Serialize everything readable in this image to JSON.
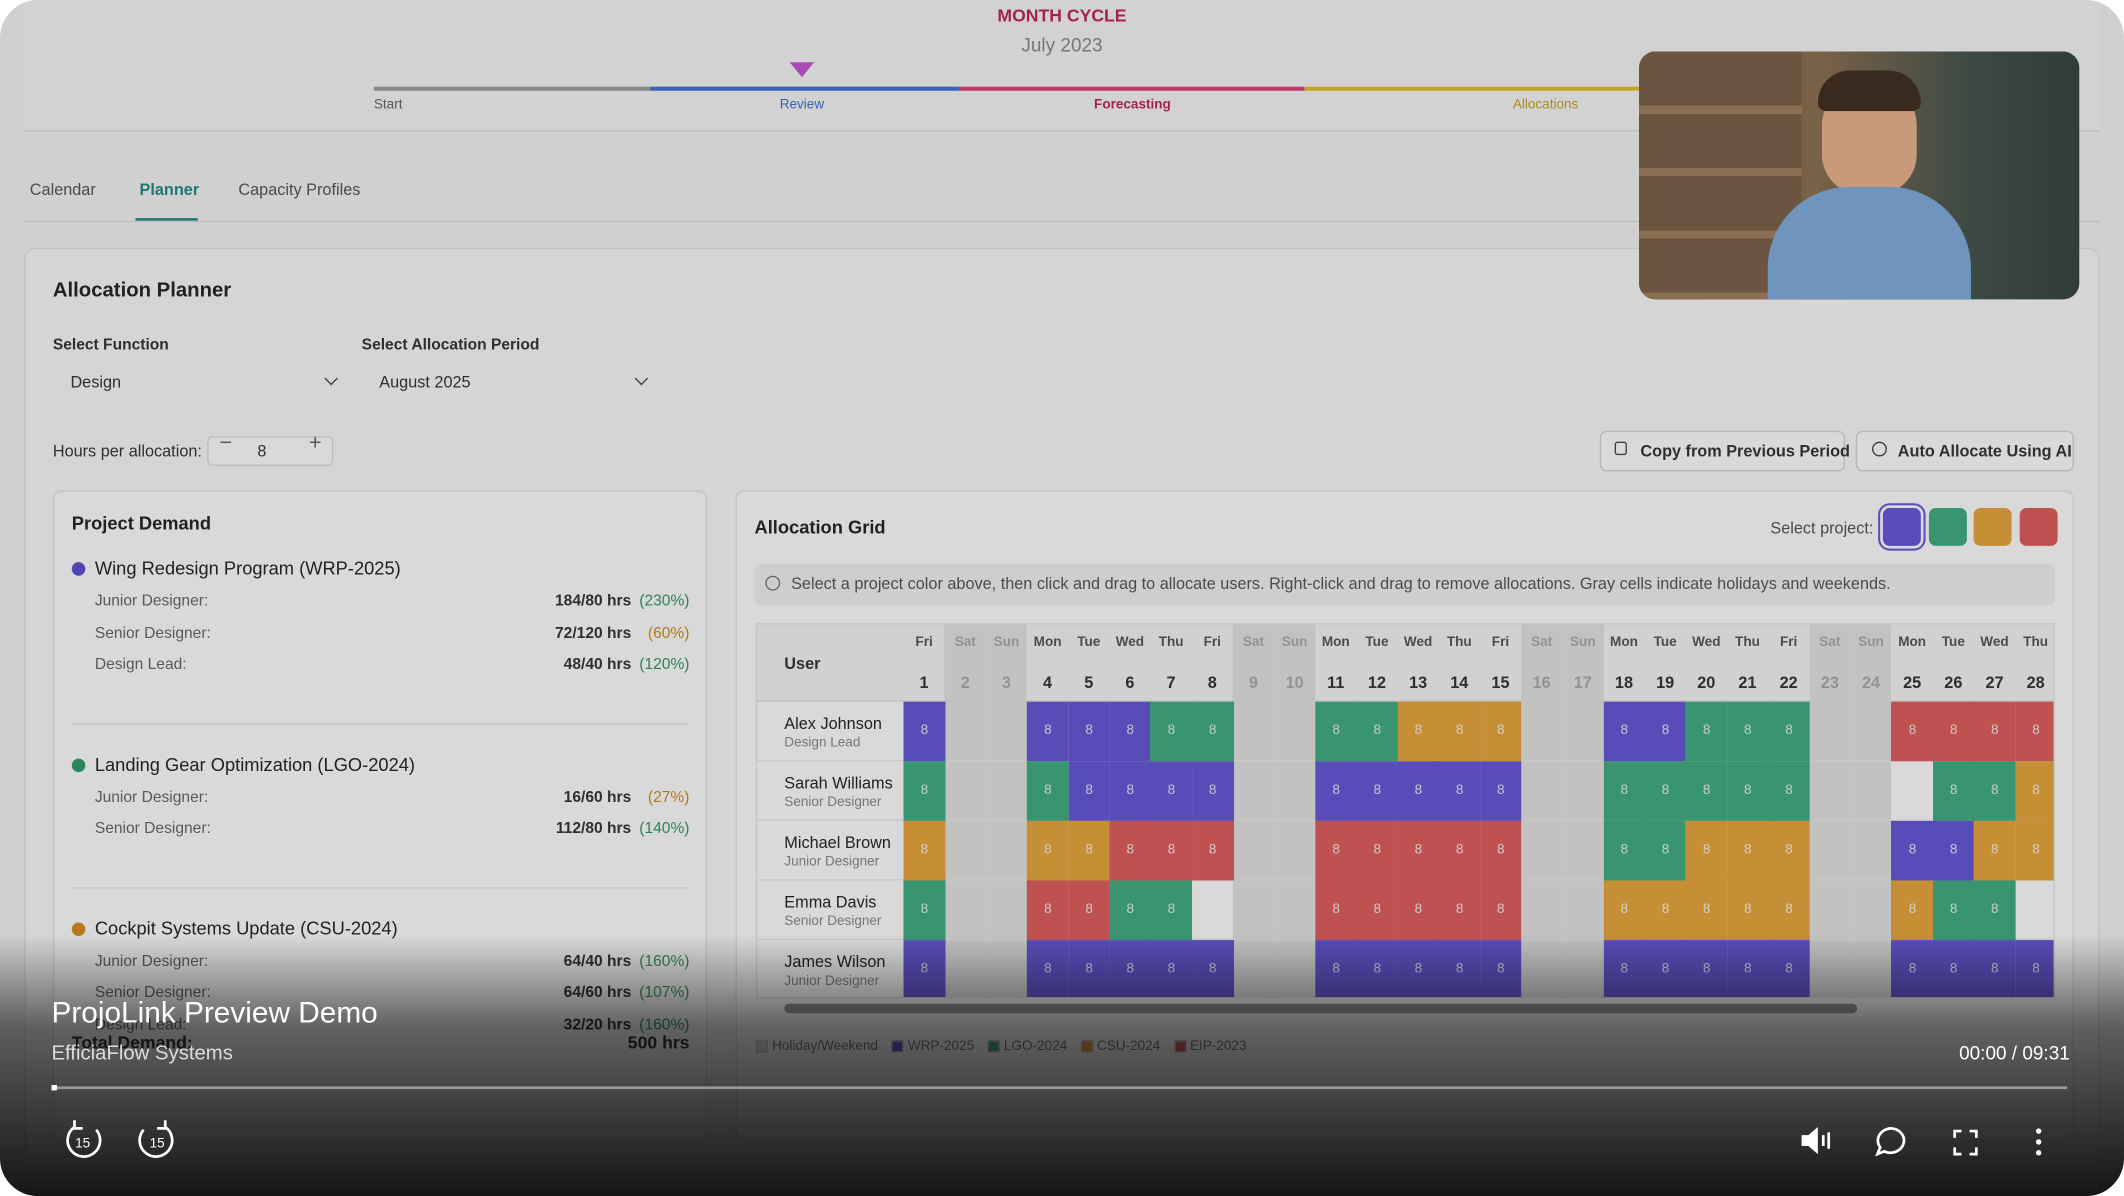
{
  "cycle": {
    "title": "MONTH CYCLE",
    "period": "July 2023",
    "stages": [
      "Start",
      "Review",
      "Forecasting",
      "Allocations"
    ]
  },
  "tabs": [
    "Calendar",
    "Planner",
    "Capacity Profiles"
  ],
  "planner": {
    "title": "Allocation Planner",
    "function_label": "Select Function",
    "function": "Design",
    "period_label": "Select Allocation Period",
    "period": "August 2025",
    "hours_label": "Hours per allocation:",
    "hours": 8,
    "copy_button": "Copy from Previous Period",
    "ai_button": "Auto Allocate Using AI"
  },
  "demand": {
    "title": "Project Demand",
    "projects": [
      {
        "name": "Wing Redesign Program (WRP-2025)",
        "color": "#5a4fd0",
        "roles": [
          {
            "role": "Junior Designer:",
            "hours": "184/80 hrs",
            "pct": "(230%)",
            "pct_color": "#2e9a5c"
          },
          {
            "role": "Senior Designer:",
            "hours": "72/120 hrs",
            "pct": "(60%)",
            "pct_color": "#d08a1a"
          },
          {
            "role": "Design Lead:",
            "hours": "48/40 hrs",
            "pct": "(120%)",
            "pct_color": "#2e9a5c"
          }
        ]
      },
      {
        "name": "Landing Gear Optimization (LGO-2024)",
        "color": "#2f9a6c",
        "roles": [
          {
            "role": "Junior Designer:",
            "hours": "16/60 hrs",
            "pct": "(27%)",
            "pct_color": "#d08a1a"
          },
          {
            "role": "Senior Designer:",
            "hours": "112/80 hrs",
            "pct": "(140%)",
            "pct_color": "#2e9a5c"
          }
        ]
      },
      {
        "name": "Cockpit Systems Update (CSU-2024)",
        "color": "#d98a1c",
        "roles": [
          {
            "role": "Junior Designer:",
            "hours": "64/40 hrs",
            "pct": "(160%)",
            "pct_color": "#2e9a5c"
          },
          {
            "role": "Senior Designer:",
            "hours": "64/60 hrs",
            "pct": "(107%)",
            "pct_color": "#2e9a5c"
          },
          {
            "role": "Design Lead:",
            "hours": "32/20 hrs",
            "pct": "(160%)",
            "pct_color": "#2e9a5c"
          }
        ]
      }
    ],
    "total_label": "Total Demand:",
    "total": "500 hrs"
  },
  "grid": {
    "title": "Allocation Grid",
    "select_label": "Select project:",
    "info": "Select a project color above, then click and drag to allocate users. Right-click and drag to remove allocations. Gray cells indicate holidays and weekends.",
    "user_header": "User",
    "days": [
      "Fri",
      "Sat",
      "Sun",
      "Mon",
      "Tue",
      "Wed",
      "Thu",
      "Fri",
      "Sat",
      "Sun",
      "Mon",
      "Tue",
      "Wed",
      "Thu",
      "Fri",
      "Sat",
      "Sun",
      "Mon",
      "Tue",
      "Wed",
      "Thu",
      "Fri",
      "Sat",
      "Sun",
      "Mon",
      "Tue",
      "Wed",
      "Thu"
    ],
    "dates": [
      1,
      2,
      3,
      4,
      5,
      6,
      7,
      8,
      9,
      10,
      11,
      12,
      13,
      14,
      15,
      16,
      17,
      18,
      19,
      20,
      21,
      22,
      23,
      24,
      25,
      26,
      27,
      28
    ],
    "legend": [
      {
        "label": "Holiday/Weekend",
        "color": "#e4e4e4"
      },
      {
        "label": "WRP-2025",
        "color": "#6457d8"
      },
      {
        "label": "LGO-2024",
        "color": "#3fae80"
      },
      {
        "label": "CSU-2024",
        "color": "#e8a53a"
      },
      {
        "label": "EIP-2023",
        "color": "#e05c5c"
      }
    ],
    "users": [
      {
        "name": "Alex Johnson",
        "role": "Design Lead",
        "cells": [
          1,
          0,
          0,
          1,
          1,
          1,
          2,
          2,
          0,
          0,
          2,
          2,
          3,
          3,
          3,
          0,
          0,
          1,
          1,
          2,
          2,
          2,
          0,
          0,
          4,
          4,
          4,
          4
        ],
        "hours": [
          8,
          null,
          null,
          8,
          8,
          8,
          8,
          8,
          null,
          null,
          8,
          8,
          8,
          8,
          8,
          null,
          null,
          8,
          8,
          8,
          8,
          8,
          null,
          null,
          8,
          8,
          8,
          8
        ]
      },
      {
        "name": "Sarah Williams",
        "role": "Senior Designer",
        "cells": [
          2,
          0,
          0,
          2,
          1,
          1,
          1,
          1,
          0,
          0,
          1,
          1,
          1,
          1,
          1,
          0,
          0,
          2,
          2,
          2,
          2,
          2,
          0,
          0,
          null,
          2,
          2,
          3
        ],
        "hours": [
          8,
          null,
          null,
          8,
          8,
          8,
          8,
          8,
          null,
          null,
          8,
          8,
          8,
          8,
          8,
          null,
          null,
          8,
          8,
          8,
          8,
          8,
          null,
          null,
          null,
          8,
          8,
          8
        ]
      },
      {
        "name": "Michael Brown",
        "role": "Junior Designer",
        "cells": [
          3,
          0,
          0,
          3,
          3,
          4,
          4,
          4,
          0,
          0,
          4,
          4,
          4,
          4,
          4,
          0,
          0,
          2,
          2,
          3,
          3,
          3,
          0,
          0,
          1,
          1,
          3,
          3
        ],
        "hours": [
          8,
          null,
          null,
          8,
          8,
          8,
          8,
          8,
          null,
          null,
          8,
          8,
          8,
          8,
          8,
          null,
          null,
          8,
          8,
          8,
          8,
          8,
          null,
          null,
          8,
          8,
          8,
          8
        ]
      },
      {
        "name": "Emma Davis",
        "role": "Senior Designer",
        "cells": [
          2,
          0,
          0,
          4,
          4,
          2,
          2,
          null,
          0,
          0,
          4,
          4,
          4,
          4,
          4,
          0,
          0,
          3,
          3,
          3,
          3,
          3,
          0,
          0,
          3,
          2,
          2,
          null
        ],
        "hours": [
          8,
          null,
          null,
          8,
          8,
          8,
          8,
          null,
          null,
          null,
          8,
          8,
          8,
          8,
          8,
          null,
          null,
          8,
          8,
          8,
          8,
          8,
          null,
          null,
          8,
          8,
          8,
          null
        ]
      },
      {
        "name": "James Wilson",
        "role": "Junior Designer",
        "cells": [
          1,
          0,
          0,
          1,
          1,
          1,
          1,
          1,
          0,
          0,
          1,
          1,
          1,
          1,
          1,
          0,
          0,
          1,
          1,
          1,
          1,
          1,
          0,
          0,
          1,
          1,
          1,
          1
        ],
        "hours": [
          8,
          null,
          null,
          8,
          8,
          8,
          8,
          8,
          null,
          null,
          8,
          8,
          8,
          8,
          8,
          null,
          null,
          8,
          8,
          8,
          8,
          8,
          null,
          null,
          8,
          8,
          8,
          8
        ]
      }
    ]
  },
  "video": {
    "title": "ProjoLink Preview Demo",
    "subtitle": "EfficiaFlow Systems",
    "time": "00:00 / 09:31",
    "skip": "15"
  }
}
